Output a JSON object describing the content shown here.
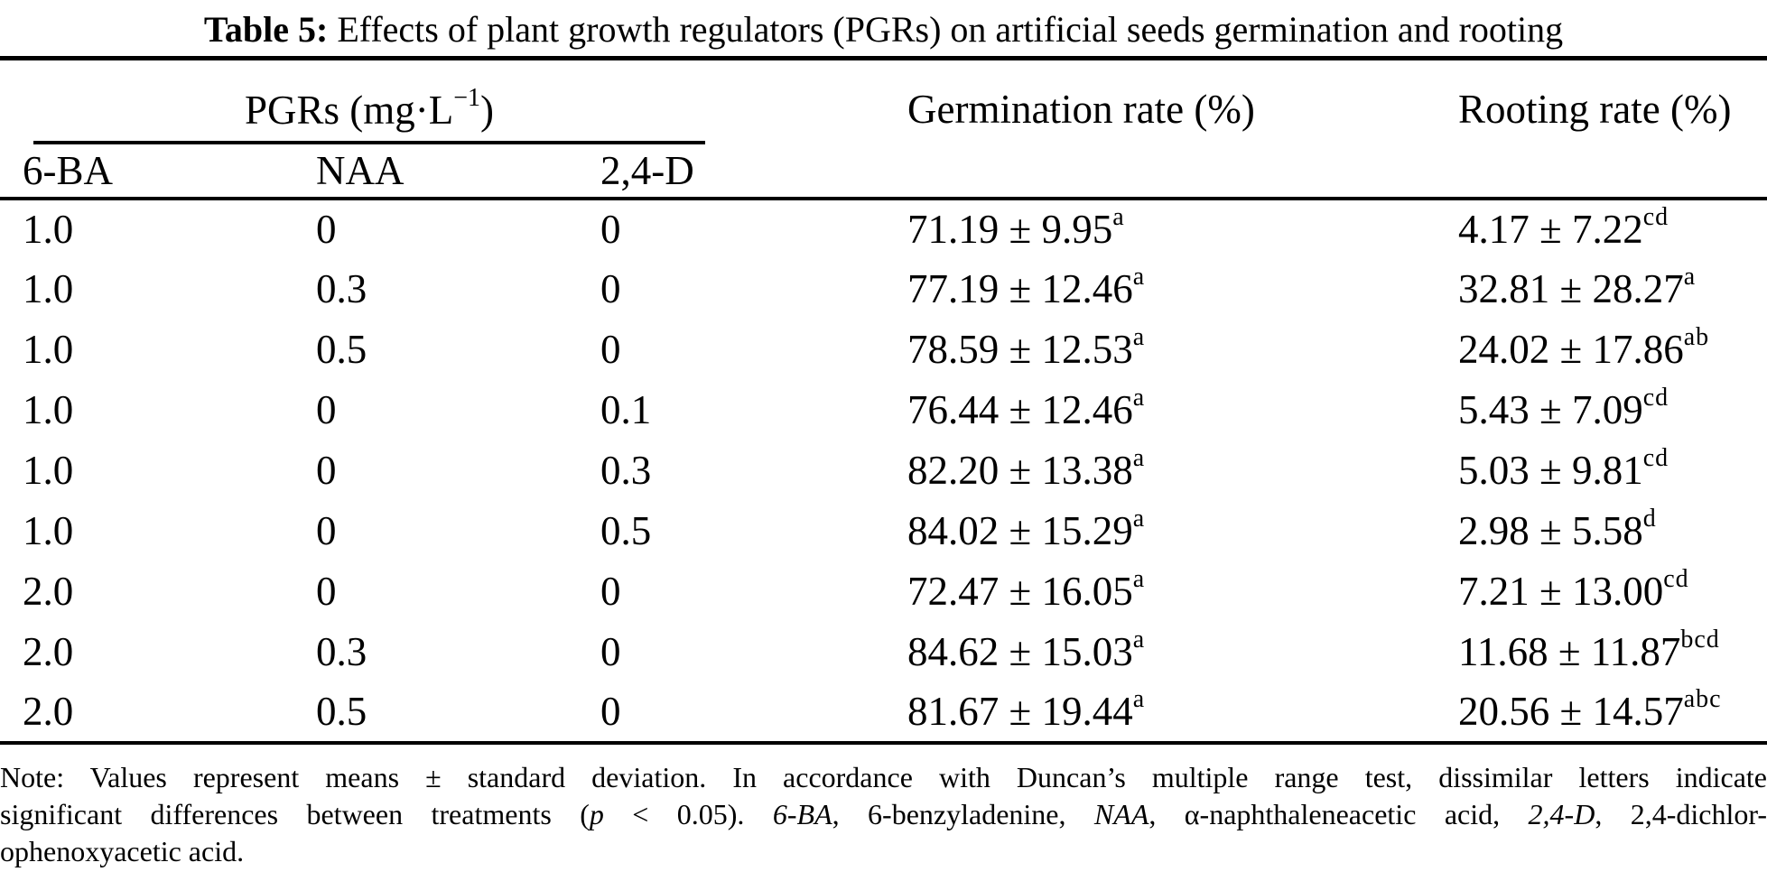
{
  "title": {
    "label": "Table 5:",
    "text": "Effects of plant growth regulators (PGRs) on artificial seeds germination and rooting"
  },
  "table": {
    "group_header": {
      "pre": "PGRs (mg·L",
      "sup": "−1",
      "post": ")"
    },
    "columns": {
      "ba": "6-BA",
      "naa": "NAA",
      "d24": "2,4-D",
      "germination": "Germination rate (%)",
      "rooting": "Rooting rate (%)"
    },
    "rows": [
      {
        "ba": "1.0",
        "naa": "0",
        "d24": "0",
        "germination": "71.19 ± 9.95",
        "germination_sup": "a",
        "rooting": "4.17 ± 7.22",
        "rooting_sup": "cd"
      },
      {
        "ba": "1.0",
        "naa": "0.3",
        "d24": "0",
        "germination": "77.19 ± 12.46",
        "germination_sup": "a",
        "rooting": "32.81 ± 28.27",
        "rooting_sup": "a"
      },
      {
        "ba": "1.0",
        "naa": "0.5",
        "d24": "0",
        "germination": "78.59 ± 12.53",
        "germination_sup": "a",
        "rooting": "24.02 ± 17.86",
        "rooting_sup": "ab"
      },
      {
        "ba": "1.0",
        "naa": "0",
        "d24": "0.1",
        "germination": "76.44 ± 12.46",
        "germination_sup": "a",
        "rooting": "5.43 ± 7.09",
        "rooting_sup": "cd"
      },
      {
        "ba": "1.0",
        "naa": "0",
        "d24": "0.3",
        "germination": "82.20 ± 13.38",
        "germination_sup": "a",
        "rooting": "5.03 ± 9.81",
        "rooting_sup": "cd"
      },
      {
        "ba": "1.0",
        "naa": "0",
        "d24": "0.5",
        "germination": "84.02 ± 15.29",
        "germination_sup": "a",
        "rooting": "2.98 ± 5.58",
        "rooting_sup": "d"
      },
      {
        "ba": "2.0",
        "naa": "0",
        "d24": "0",
        "germination": "72.47 ± 16.05",
        "germination_sup": "a",
        "rooting": "7.21 ± 13.00",
        "rooting_sup": "cd"
      },
      {
        "ba": "2.0",
        "naa": "0.3",
        "d24": "0",
        "germination": "84.62 ± 15.03",
        "germination_sup": "a",
        "rooting": "11.68 ± 11.87",
        "rooting_sup": "bcd"
      },
      {
        "ba": "2.0",
        "naa": "0.5",
        "d24": "0",
        "germination": "81.67 ± 19.44",
        "germination_sup": "a",
        "rooting": "20.56 ± 14.57",
        "rooting_sup": "abc"
      }
    ]
  },
  "note": {
    "line1": "Note: Values represent means ± standard deviation. In accordance with Duncan’s multiple range test, dissimilar letters indicate",
    "line2": {
      "t1": "significant differences between treatments (",
      "i1": "p",
      "t2": " < 0.05). ",
      "i2": "6-BA",
      "t3": ", 6-benzyladenine, ",
      "i3": "NAA",
      "t4": ", α-naphthaleneacetic acid, ",
      "i4": "2,4-D",
      "t5": ", 2,4-dichlor-"
    },
    "line3": "ophenoxyacetic acid."
  },
  "colors": {
    "text": "#000000",
    "background": "#ffffff",
    "rule": "#000000"
  }
}
